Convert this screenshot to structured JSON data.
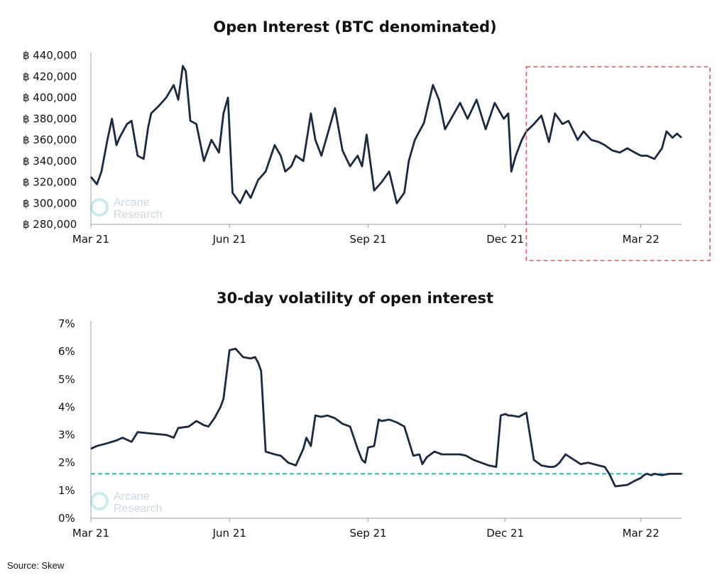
{
  "source": "Source: Skew",
  "watermark": {
    "line1": "Arcane",
    "line2": "Research"
  },
  "colors": {
    "line": "#1b2a41",
    "highlight_box": "#e05a5a",
    "reference_line": "#24c1b3"
  },
  "chart_data": [
    {
      "type": "line",
      "title": "Open Interest (BTC denominated)",
      "xlabel": "",
      "ylabel": "",
      "x_ticks": [
        "Mar 21",
        "Jun 21",
        "Sep 21",
        "Dec 21",
        "Mar 22"
      ],
      "y_ticks": [
        "฿ 280,000",
        "฿ 300,000",
        "฿ 320,000",
        "฿ 340,000",
        "฿ 360,000",
        "฿ 380,000",
        "฿ 400,000",
        "฿ 420,000",
        "฿ 440,000"
      ],
      "ylim": [
        280000,
        440000
      ],
      "xlim": [
        "2021-03-01",
        "2022-03-28"
      ],
      "highlight_box": {
        "from": "2021-12-15",
        "to": "end",
        "style": "dashed"
      },
      "series": [
        {
          "x": [
            "2021-03-01",
            "2021-03-05",
            "2021-03-08",
            "2021-03-12",
            "2021-03-15",
            "2021-03-18",
            "2021-03-20",
            "2021-03-25",
            "2021-03-28",
            "2021-04-01",
            "2021-04-05",
            "2021-04-08",
            "2021-04-10",
            "2021-04-15",
            "2021-04-20",
            "2021-04-25",
            "2021-04-28",
            "2021-05-01",
            "2021-05-03",
            "2021-05-06",
            "2021-05-10",
            "2021-05-15",
            "2021-05-20",
            "2021-05-25",
            "2021-05-28",
            "2021-05-31",
            "2021-06-03",
            "2021-06-08",
            "2021-06-12",
            "2021-06-15",
            "2021-06-20",
            "2021-06-25",
            "2021-07-01",
            "2021-07-05",
            "2021-07-08",
            "2021-07-12",
            "2021-07-15",
            "2021-07-20",
            "2021-07-25",
            "2021-07-28",
            "2021-08-01",
            "2021-08-05",
            "2021-08-10",
            "2021-08-15",
            "2021-08-20",
            "2021-08-25",
            "2021-08-28",
            "2021-08-31",
            "2021-09-05",
            "2021-09-10",
            "2021-09-15",
            "2021-09-20",
            "2021-09-25",
            "2021-09-28",
            "2021-10-02",
            "2021-10-08",
            "2021-10-14",
            "2021-10-18",
            "2021-10-22",
            "2021-10-26",
            "2021-11-01",
            "2021-11-06",
            "2021-11-12",
            "2021-11-18",
            "2021-11-24",
            "2021-11-30",
            "2021-12-03",
            "2021-12-05",
            "2021-12-08",
            "2021-12-12",
            "2021-12-15",
            "2021-12-20",
            "2021-12-25",
            "2021-12-30",
            "2022-01-03",
            "2022-01-08",
            "2022-01-12",
            "2022-01-18",
            "2022-01-22",
            "2022-01-27",
            "2022-02-01",
            "2022-02-05",
            "2022-02-10",
            "2022-02-15",
            "2022-02-20",
            "2022-02-25",
            "2022-03-01",
            "2022-03-05",
            "2022-03-10",
            "2022-03-15",
            "2022-03-18",
            "2022-03-22",
            "2022-03-25",
            "2022-03-28"
          ],
          "y": [
            325000,
            318000,
            330000,
            360000,
            380000,
            355000,
            362000,
            375000,
            378000,
            345000,
            342000,
            372000,
            385000,
            392000,
            400000,
            412000,
            398000,
            430000,
            425000,
            378000,
            375000,
            340000,
            360000,
            348000,
            385000,
            400000,
            310000,
            300000,
            312000,
            305000,
            322000,
            330000,
            355000,
            345000,
            330000,
            335000,
            345000,
            340000,
            385000,
            360000,
            345000,
            365000,
            390000,
            350000,
            335000,
            345000,
            335000,
            365000,
            312000,
            320000,
            330000,
            300000,
            310000,
            340000,
            360000,
            376000,
            412000,
            398000,
            370000,
            380000,
            395000,
            380000,
            398000,
            370000,
            395000,
            380000,
            385000,
            330000,
            345000,
            360000,
            368000,
            375000,
            383000,
            358000,
            385000,
            375000,
            378000,
            360000,
            368000,
            360000,
            358000,
            355000,
            350000,
            348000,
            352000,
            348000,
            345000,
            345000,
            342000,
            352000,
            368000,
            362000,
            366000,
            362000
          ]
        }
      ]
    },
    {
      "type": "line",
      "title": "30-day volatility of open interest",
      "xlabel": "",
      "ylabel": "",
      "x_ticks": [
        "Mar 21",
        "Jun 21",
        "Sep 21",
        "Dec 21",
        "Mar 22"
      ],
      "y_ticks": [
        "0%",
        "1%",
        "2%",
        "3%",
        "4%",
        "5%",
        "6%",
        "7%"
      ],
      "ylim": [
        0,
        7
      ],
      "xlim": [
        "2021-03-01",
        "2022-03-28"
      ],
      "reference_line": {
        "value": 1.6,
        "style": "dashed"
      },
      "series": [
        {
          "x": [
            "2021-03-01",
            "2021-03-05",
            "2021-03-12",
            "2021-03-18",
            "2021-03-22",
            "2021-03-28",
            "2021-04-01",
            "2021-04-10",
            "2021-04-20",
            "2021-04-25",
            "2021-04-28",
            "2021-05-05",
            "2021-05-10",
            "2021-05-15",
            "2021-05-18",
            "2021-05-22",
            "2021-05-26",
            "2021-05-28",
            "2021-06-01",
            "2021-06-05",
            "2021-06-10",
            "2021-06-15",
            "2021-06-18",
            "2021-06-20",
            "2021-06-22",
            "2021-06-25",
            "2021-07-01",
            "2021-07-05",
            "2021-07-10",
            "2021-07-15",
            "2021-07-20",
            "2021-07-22",
            "2021-07-25",
            "2021-07-28",
            "2021-08-01",
            "2021-08-05",
            "2021-08-10",
            "2021-08-15",
            "2021-08-20",
            "2021-08-25",
            "2021-08-28",
            "2021-08-30",
            "2021-09-01",
            "2021-09-05",
            "2021-09-08",
            "2021-09-10",
            "2021-09-15",
            "2021-09-20",
            "2021-09-25",
            "2021-10-01",
            "2021-10-05",
            "2021-10-07",
            "2021-10-10",
            "2021-10-15",
            "2021-10-20",
            "2021-10-25",
            "2021-11-01",
            "2021-11-05",
            "2021-11-10",
            "2021-11-15",
            "2021-11-20",
            "2021-11-25",
            "2021-11-28",
            "2021-12-01",
            "2021-12-03",
            "2021-12-05",
            "2021-12-10",
            "2021-12-15",
            "2021-12-20",
            "2021-12-25",
            "2021-12-30",
            "2022-01-02",
            "2022-01-04",
            "2022-01-06",
            "2022-01-10",
            "2022-01-20",
            "2022-01-25",
            "2022-02-01",
            "2022-02-05",
            "2022-02-08",
            "2022-02-12",
            "2022-02-20",
            "2022-02-25",
            "2022-03-01",
            "2022-03-03",
            "2022-03-05",
            "2022-03-08",
            "2022-03-10",
            "2022-03-15",
            "2022-03-20",
            "2022-03-25",
            "2022-03-28"
          ],
          "y": [
            2.5,
            2.6,
            2.7,
            2.8,
            2.9,
            2.75,
            3.1,
            3.05,
            3.0,
            2.9,
            3.25,
            3.3,
            3.5,
            3.35,
            3.3,
            3.6,
            4.0,
            4.3,
            6.05,
            6.1,
            5.8,
            5.75,
            5.8,
            5.6,
            5.3,
            2.4,
            2.3,
            2.25,
            2.0,
            1.9,
            2.5,
            2.9,
            2.6,
            3.7,
            3.65,
            3.7,
            3.6,
            3.4,
            3.3,
            2.5,
            2.1,
            2.0,
            2.55,
            2.6,
            3.55,
            3.5,
            3.55,
            3.45,
            3.3,
            2.25,
            2.3,
            1.95,
            2.2,
            2.4,
            2.3,
            2.3,
            2.3,
            2.25,
            2.1,
            2.0,
            1.9,
            1.85,
            3.7,
            3.75,
            3.7,
            3.7,
            3.65,
            3.8,
            2.1,
            1.9,
            1.85,
            1.85,
            1.9,
            2.0,
            2.3,
            1.95,
            2.0,
            1.9,
            1.85,
            1.6,
            1.15,
            1.2,
            1.35,
            1.45,
            1.55,
            1.6,
            1.55,
            1.6,
            1.55,
            1.6,
            1.6,
            1.6
          ]
        }
      ]
    }
  ]
}
